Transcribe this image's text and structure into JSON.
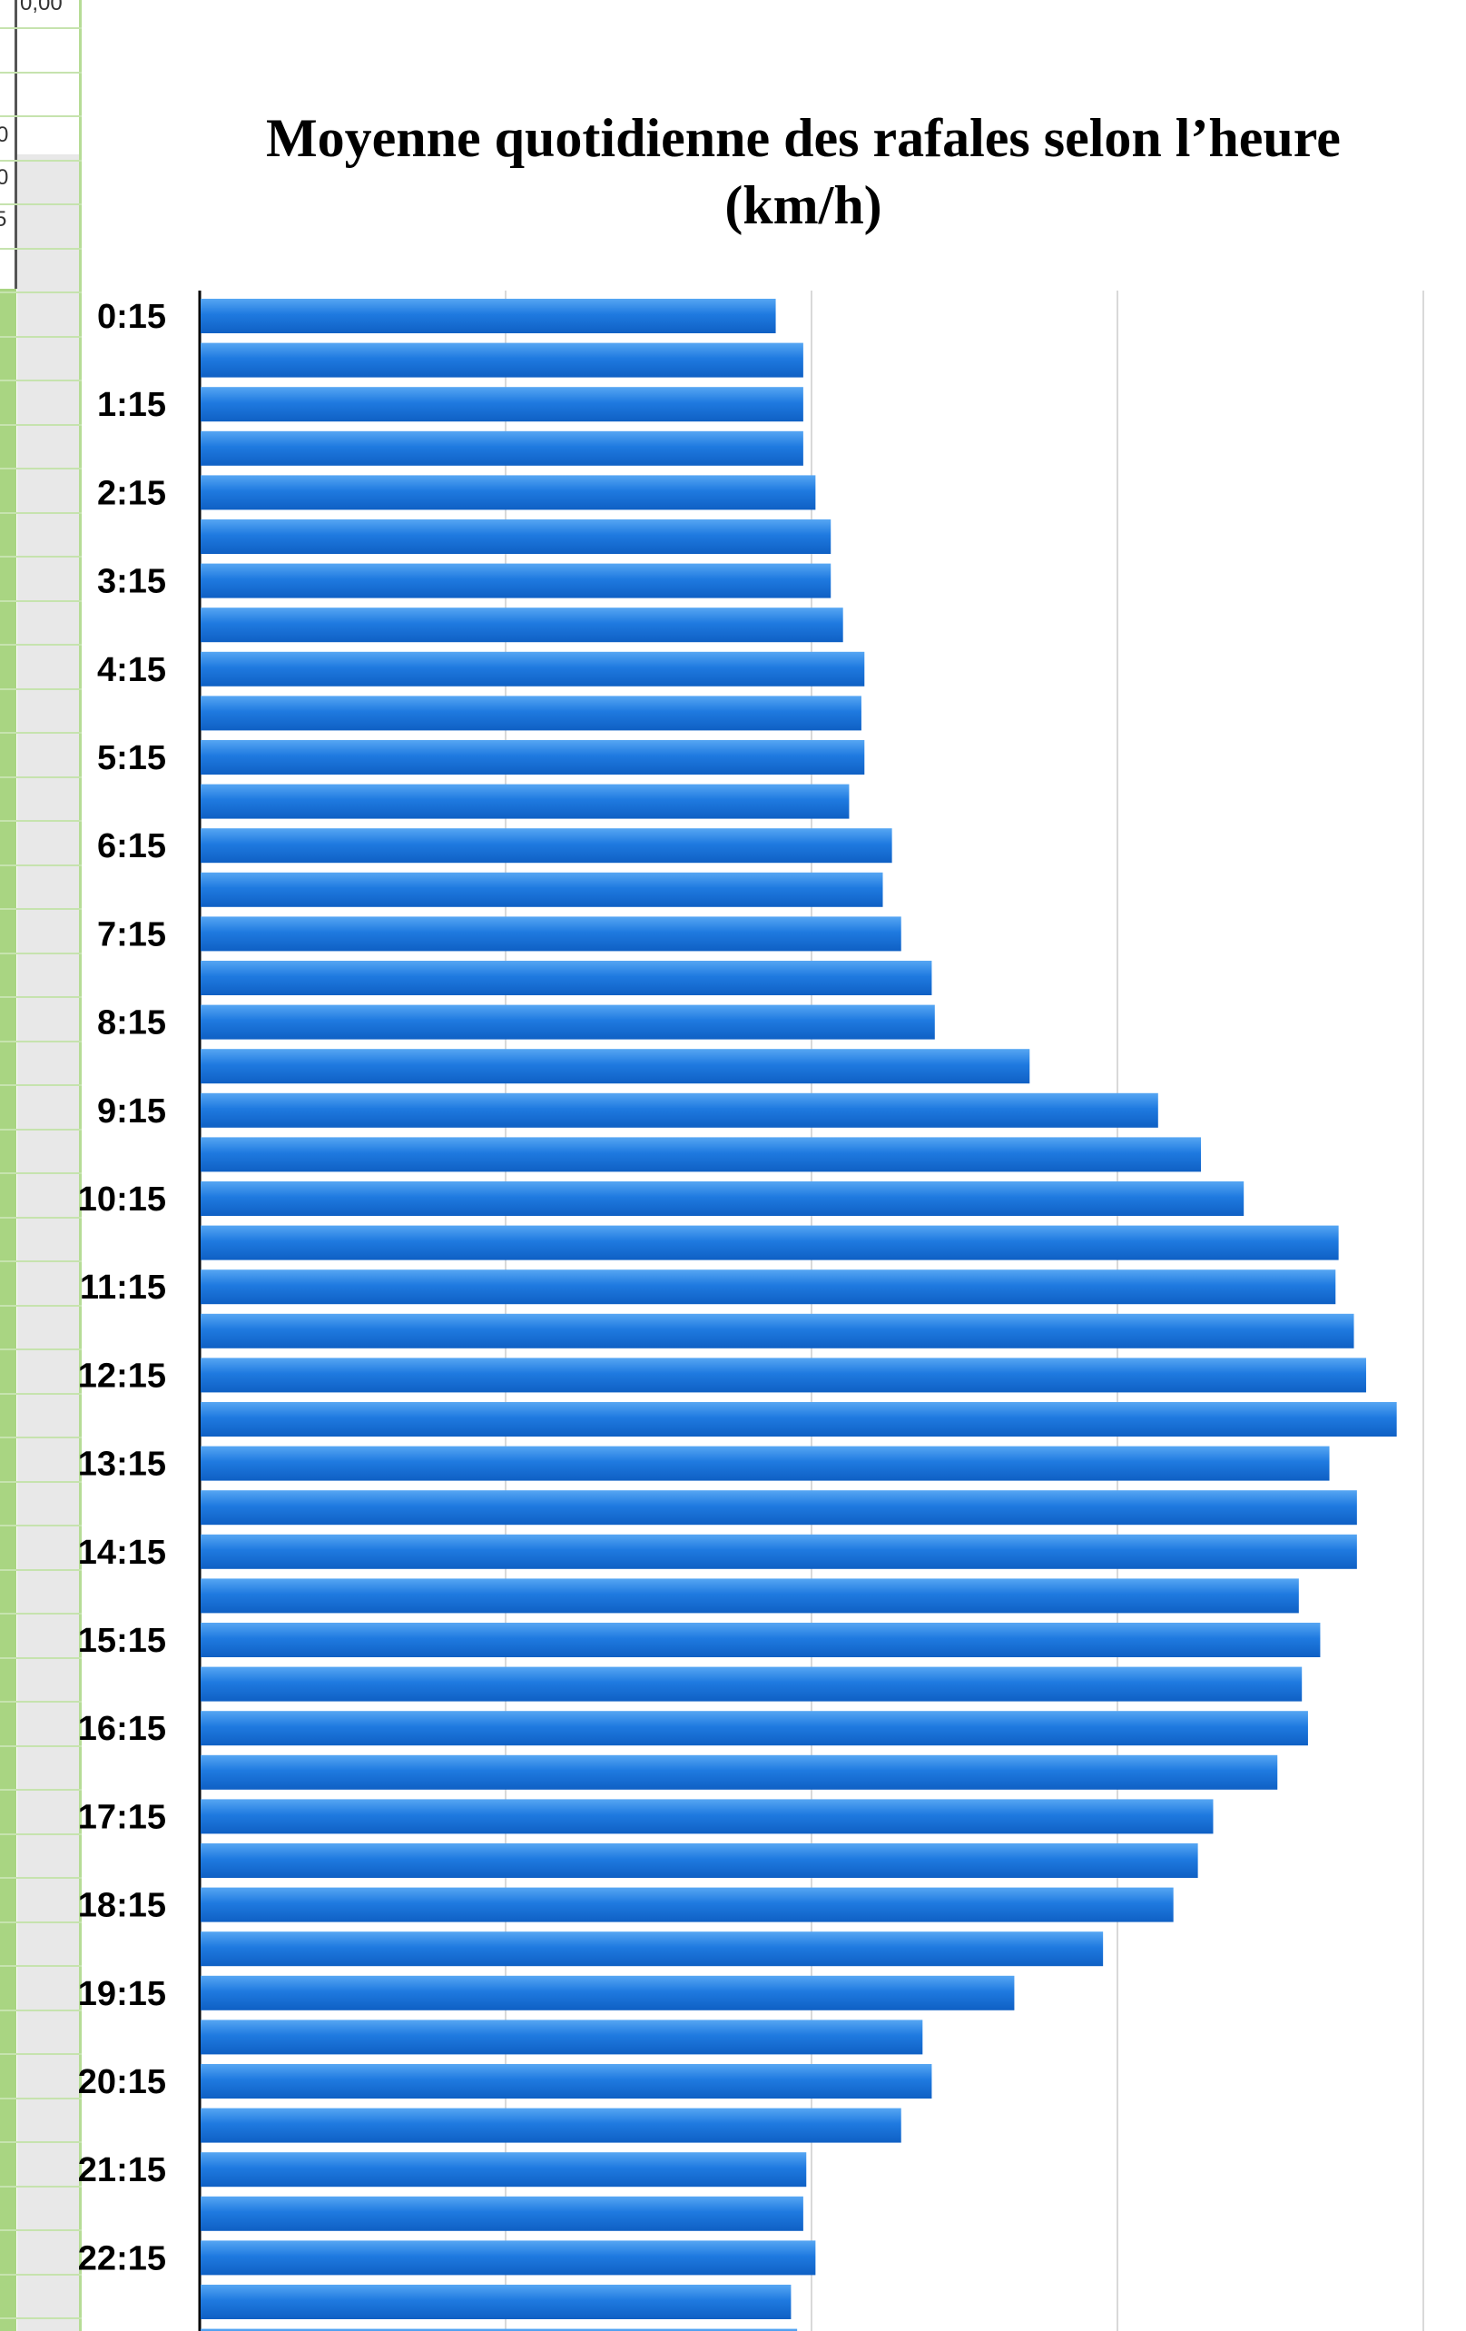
{
  "sheet": {
    "cell_top": "0,00",
    "cell_a": "0",
    "cell_b": "0",
    "cell_c": "5"
  },
  "colors": {
    "bar": "#1a73dc",
    "bar_light": "#4d9df0",
    "grid": "#d9d9d9",
    "axis": "#000000"
  },
  "chart_data": {
    "type": "bar",
    "orientation": "horizontal",
    "title": "Moyenne quotidienne des rafales selon l’heure (km/h)",
    "xlabel": "",
    "ylabel": "",
    "xlim": [
      0,
      40
    ],
    "grid": true,
    "categories": [
      "0:15",
      "0:45",
      "1:15",
      "1:45",
      "2:15",
      "2:45",
      "3:15",
      "3:45",
      "4:15",
      "4:45",
      "5:15",
      "5:45",
      "6:15",
      "6:45",
      "7:15",
      "7:45",
      "8:15",
      "8:45",
      "9:15",
      "9:45",
      "10:15",
      "10:45",
      "11:15",
      "11:45",
      "12:15",
      "12:45",
      "13:15",
      "13:45",
      "14:15",
      "14:45",
      "15:15",
      "15:45",
      "16:15",
      "16:45",
      "17:15",
      "17:45",
      "18:15",
      "18:45",
      "19:15",
      "19:45",
      "20:15",
      "20:45",
      "21:15",
      "21:45",
      "22:15",
      "22:45",
      "23:15"
    ],
    "tick_labels": [
      "0:15",
      "1:15",
      "2:15",
      "3:15",
      "4:15",
      "5:15",
      "6:15",
      "7:15",
      "8:15",
      "9:15",
      "10:15",
      "11:15",
      "12:15",
      "13:15",
      "14:15",
      "15:15",
      "16:15",
      "17:15",
      "18:15",
      "19:15",
      "20:15",
      "21:15",
      "22:15",
      "23:15"
    ],
    "values": [
      18.8,
      19.7,
      19.7,
      19.7,
      20.1,
      20.6,
      20.6,
      21.0,
      21.7,
      21.6,
      21.7,
      21.2,
      22.6,
      22.3,
      22.9,
      23.9,
      24.0,
      27.1,
      31.3,
      32.7,
      34.1,
      37.2,
      37.1,
      37.7,
      38.1,
      39.1,
      36.9,
      37.8,
      37.8,
      35.9,
      36.6,
      36.0,
      36.2,
      35.2,
      33.1,
      32.6,
      31.8,
      29.5,
      26.6,
      23.6,
      23.9,
      22.9,
      19.8,
      19.7,
      20.1,
      19.3,
      19.5
    ]
  }
}
